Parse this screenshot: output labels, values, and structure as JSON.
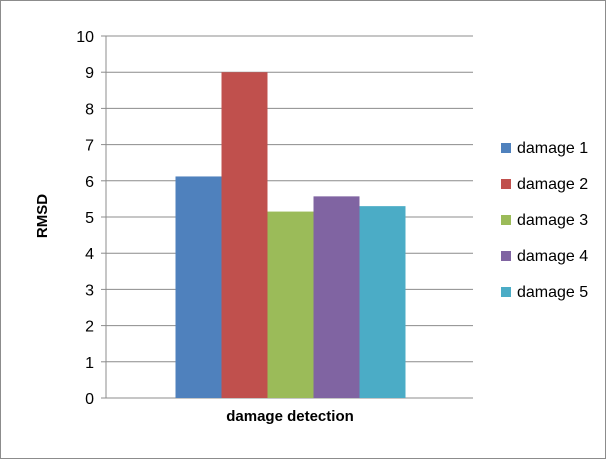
{
  "chart_data": {
    "type": "bar",
    "title": "",
    "xlabel": "damage detection",
    "ylabel": "RMSD",
    "ylim": [
      0,
      10
    ],
    "yticks": [
      0,
      1,
      2,
      3,
      4,
      5,
      6,
      7,
      8,
      9,
      10
    ],
    "grid": true,
    "legend_position": "right",
    "categories": [
      "damage detection"
    ],
    "series": [
      {
        "name": "damage 1",
        "values": [
          6.12
        ],
        "color": "#4F81BD"
      },
      {
        "name": "damage 2",
        "values": [
          9.0
        ],
        "color": "#C0504D"
      },
      {
        "name": "damage 3",
        "values": [
          5.15
        ],
        "color": "#9BBB59"
      },
      {
        "name": "damage 4",
        "values": [
          5.57
        ],
        "color": "#8064A2"
      },
      {
        "name": "damage 5",
        "values": [
          5.3
        ],
        "color": "#4BACC6"
      }
    ]
  }
}
